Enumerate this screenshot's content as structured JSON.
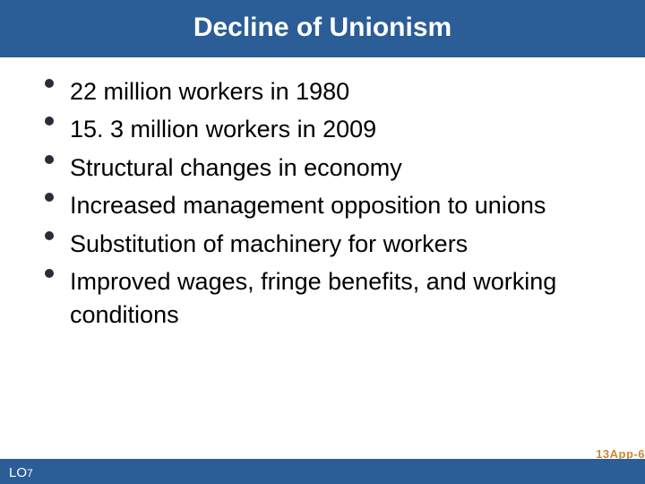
{
  "title": "Decline of Unionism",
  "bullets": [
    "22 million workers in 1980",
    "15. 3 million workers in 2009",
    "Structural changes in economy",
    "Increased management opposition to unions",
    "Substitution of machinery for workers",
    "Improved wages, fringe benefits, and working conditions"
  ],
  "footer": {
    "lo_prefix": "LO",
    "lo_number": "7",
    "page_ref": "13App-6"
  },
  "colors": {
    "title_bg": "#2b5d97",
    "title_text": "#ffffff",
    "body_bg": "#ffffff",
    "bullet_text": "#000000",
    "bullet_dot": "#2b2b3a",
    "footer_bg": "#2b5d97",
    "page_ref_color": "#c48a2e"
  },
  "typography": {
    "title_fontsize": 30,
    "title_weight": "bold",
    "bullet_fontsize": 27,
    "lo_fontsize": 15,
    "page_ref_fontsize": 13
  }
}
